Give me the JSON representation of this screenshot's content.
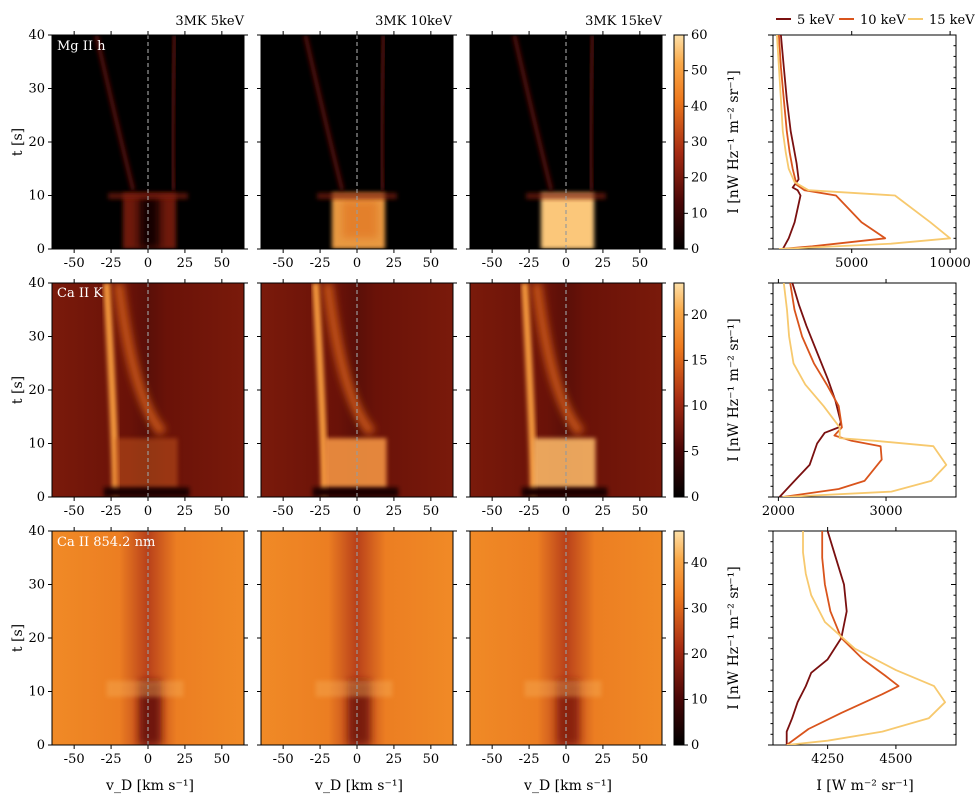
{
  "figure": {
    "column_titles": [
      "3MK 5keV",
      "3MK 10keV",
      "3MK 15keV"
    ],
    "row_labels": [
      "Mg II h",
      "Ca II K",
      "Ca II 854.2 nm"
    ],
    "xlabel_heatmap": "v_D  [km s⁻¹]",
    "ylabel_heatmap": "t  [s]",
    "colorbar_label": "I  [nW Hz⁻¹ m⁻² sr⁻¹]",
    "xlabel_line": "I  [W m⁻² sr⁻¹]",
    "legend": [
      "5 keV",
      "10 keV",
      "15 keV"
    ],
    "colors": {
      "5 keV": "#7a1010",
      "10 keV": "#d9541c",
      "15 keV": "#f7c96e"
    },
    "colormap": "YlOrBr_r-like (black → dark red → orange → pale yellow)"
  },
  "chart_data": [
    {
      "type": "heatmap",
      "row": "Mg II h",
      "x_ticks": [
        -50,
        -25,
        0,
        25,
        50
      ],
      "y_ticks": [
        0,
        10,
        20,
        30,
        40
      ],
      "xlim": [
        -65,
        65
      ],
      "ylim": [
        0,
        40
      ],
      "colorbar": {
        "ticks": [
          0,
          10,
          20,
          30,
          40,
          50,
          60
        ],
        "range": [
          0,
          60
        ]
      },
      "panels": [
        "3MK 5keV",
        "3MK 10keV",
        "3MK 15keV"
      ]
    },
    {
      "type": "heatmap",
      "row": "Ca II K",
      "x_ticks": [
        -50,
        -25,
        0,
        25,
        50
      ],
      "y_ticks": [
        0,
        10,
        20,
        30,
        40
      ],
      "xlim": [
        -65,
        65
      ],
      "ylim": [
        0,
        40
      ],
      "colorbar": {
        "ticks": [
          0,
          5,
          10,
          15,
          20
        ],
        "range": [
          0,
          23.5
        ]
      },
      "panels": [
        "3MK 5keV",
        "3MK 10keV",
        "3MK 15keV"
      ]
    },
    {
      "type": "heatmap",
      "row": "Ca II 854.2 nm",
      "x_ticks": [
        -50,
        -25,
        0,
        25,
        50
      ],
      "y_ticks": [
        0,
        10,
        20,
        30,
        40
      ],
      "xlim": [
        -65,
        65
      ],
      "ylim": [
        0,
        40
      ],
      "colorbar": {
        "ticks": [
          0,
          10,
          20,
          30,
          40
        ],
        "range": [
          0,
          47
        ]
      },
      "panels": [
        "3MK 5keV",
        "3MK 10keV",
        "3MK 15keV"
      ]
    },
    {
      "type": "line",
      "row": "Mg II h",
      "x_ticks": [
        5000,
        10000
      ],
      "xlim": [
        1000,
        10300
      ],
      "ylim": [
        0,
        40
      ],
      "series": [
        {
          "name": "5 keV",
          "points": [
            [
              1400,
              40
            ],
            [
              1550,
              34
            ],
            [
              1700,
              28
            ],
            [
              1900,
              22
            ],
            [
              2050,
              19
            ],
            [
              2200,
              16
            ],
            [
              2300,
              13
            ],
            [
              2000,
              11.5
            ],
            [
              2250,
              11
            ],
            [
              2400,
              10
            ],
            [
              2100,
              5
            ],
            [
              1800,
              2
            ],
            [
              1500,
              0
            ]
          ]
        },
        {
          "name": "10 keV",
          "points": [
            [
              1300,
              40
            ],
            [
              1400,
              34
            ],
            [
              1550,
              28
            ],
            [
              1700,
              22
            ],
            [
              1850,
              18
            ],
            [
              2000,
              15
            ],
            [
              2200,
              12
            ],
            [
              2600,
              11
            ],
            [
              4200,
              10
            ],
            [
              5500,
              5
            ],
            [
              6700,
              2
            ],
            [
              3000,
              0.5
            ],
            [
              1400,
              0
            ]
          ]
        },
        {
          "name": "15 keV",
          "points": [
            [
              1200,
              40
            ],
            [
              1300,
              34
            ],
            [
              1400,
              28
            ],
            [
              1500,
              22
            ],
            [
              1650,
              18
            ],
            [
              1800,
              15
            ],
            [
              2100,
              12.5
            ],
            [
              2800,
              11
            ],
            [
              7200,
              10
            ],
            [
              9000,
              5
            ],
            [
              10000,
              2
            ],
            [
              7000,
              1
            ],
            [
              1300,
              0
            ]
          ]
        }
      ]
    },
    {
      "type": "line",
      "row": "Ca II K",
      "x_ticks": [
        2000,
        3000
      ],
      "xlim": [
        1950,
        3650
      ],
      "ylim": [
        0,
        40
      ],
      "series": [
        {
          "name": "5 keV",
          "points": [
            [
              2130,
              40
            ],
            [
              2190,
              36
            ],
            [
              2260,
              32
            ],
            [
              2360,
              27
            ],
            [
              2460,
              22
            ],
            [
              2530,
              18
            ],
            [
              2580,
              14
            ],
            [
              2560,
              13
            ],
            [
              2430,
              12
            ],
            [
              2360,
              10
            ],
            [
              2290,
              6
            ],
            [
              2150,
              3
            ],
            [
              2010,
              0
            ]
          ]
        },
        {
          "name": "10 keV",
          "points": [
            [
              2110,
              40
            ],
            [
              2150,
              35
            ],
            [
              2220,
              30
            ],
            [
              2330,
              25
            ],
            [
              2450,
              21
            ],
            [
              2560,
              17
            ],
            [
              2590,
              13
            ],
            [
              2520,
              11.5
            ],
            [
              2680,
              10.5
            ],
            [
              2950,
              9.5
            ],
            [
              2960,
              7
            ],
            [
              2800,
              3
            ],
            [
              2560,
              1.5
            ],
            [
              2040,
              0
            ]
          ]
        },
        {
          "name": "15 keV",
          "points": [
            [
              2050,
              40
            ],
            [
              2080,
              35
            ],
            [
              2100,
              30
            ],
            [
              2140,
              25
            ],
            [
              2250,
              21
            ],
            [
              2420,
              17
            ],
            [
              2570,
              13
            ],
            [
              2570,
              11
            ],
            [
              2900,
              10.5
            ],
            [
              3440,
              9.5
            ],
            [
              3560,
              6
            ],
            [
              3420,
              3
            ],
            [
              3050,
              1
            ],
            [
              2040,
              0
            ]
          ]
        }
      ]
    },
    {
      "type": "line",
      "row": "Ca II 854.2 nm",
      "x_ticks": [
        4250,
        4500
      ],
      "xlim": [
        4050,
        4720
      ],
      "ylim": [
        0,
        40
      ],
      "series": [
        {
          "name": "5 keV",
          "points": [
            [
              4250,
              40
            ],
            [
              4280,
              35
            ],
            [
              4310,
              30
            ],
            [
              4320,
              25
            ],
            [
              4300,
              20
            ],
            [
              4250,
              16
            ],
            [
              4190,
              13.5
            ],
            [
              4170,
              11
            ],
            [
              4140,
              8
            ],
            [
              4120,
              5
            ],
            [
              4100,
              2.5
            ],
            [
              4100,
              0
            ]
          ]
        },
        {
          "name": "10 keV",
          "points": [
            [
              4230,
              40
            ],
            [
              4230,
              35
            ],
            [
              4240,
              30
            ],
            [
              4260,
              25
            ],
            [
              4300,
              20
            ],
            [
              4380,
              16
            ],
            [
              4460,
              13
            ],
            [
              4510,
              11
            ],
            [
              4450,
              9.5
            ],
            [
              4300,
              6
            ],
            [
              4180,
              3
            ],
            [
              4100,
              0
            ]
          ]
        },
        {
          "name": "15 keV",
          "points": [
            [
              4160,
              40
            ],
            [
              4160,
              36
            ],
            [
              4170,
              32
            ],
            [
              4190,
              28
            ],
            [
              4240,
              23
            ],
            [
              4350,
              18
            ],
            [
              4500,
              14
            ],
            [
              4640,
              11
            ],
            [
              4680,
              8
            ],
            [
              4620,
              5
            ],
            [
              4450,
              2.5
            ],
            [
              4250,
              0.8
            ],
            [
              4100,
              0
            ]
          ]
        }
      ]
    }
  ]
}
